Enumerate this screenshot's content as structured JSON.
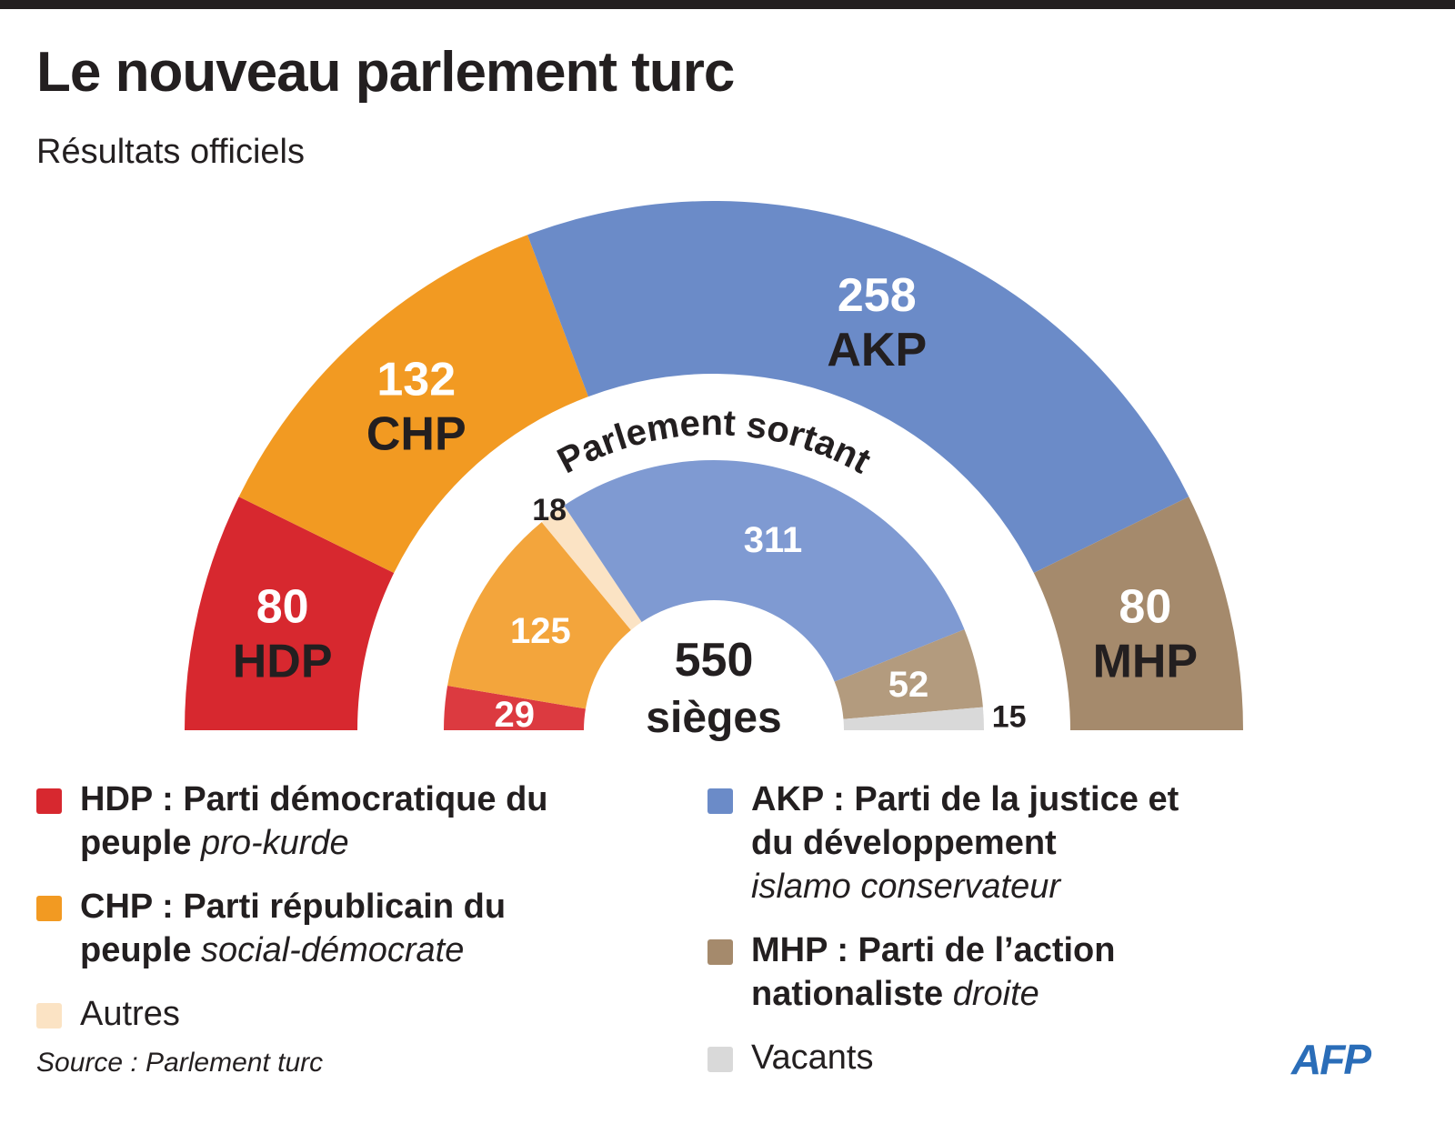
{
  "title": "Le nouveau parlement turc",
  "subtitle": "Résultats officiels",
  "chart_data": [
    {
      "type": "half-pie",
      "categories": [
        "HDP",
        "CHP",
        "AKP",
        "MHP"
      ],
      "values": [
        80,
        132,
        258,
        80
      ],
      "colors": [
        "#d7282f",
        "#f29a22",
        "#6b8bc8",
        "#a58a6c"
      ]
    },
    {
      "type": "half-pie",
      "title": "Parlement sortant",
      "values": [
        29,
        125,
        18,
        311,
        52,
        15
      ],
      "colors": [
        "#dc3a40",
        "#f3a53c",
        "#fbe3c4",
        "#7f9ad2",
        "#b39b7e",
        "#d9d9d9"
      ],
      "center_value": 550,
      "center_label": "sièges"
    }
  ],
  "legend": [
    {
      "label": "HDP : Parti démocratique du peuple",
      "note": "pro-kurde",
      "color": "#d7282f"
    },
    {
      "label": "CHP : Parti républicain du peuple",
      "note": "social-démocrate",
      "color": "#f29a22"
    },
    {
      "label": "Autres",
      "color": "#fbe3c4"
    },
    {
      "label": "AKP : Parti de la justice et du développement",
      "note": "islamo conservateur",
      "color": "#6b8bc8"
    },
    {
      "label": "MHP : Parti de l’action nationaliste",
      "note": "droite",
      "color": "#a58a6c"
    },
    {
      "label": "Vacants",
      "color": "#d9d9d9"
    }
  ],
  "source": "Source : Parlement turc",
  "logo": "AFP"
}
